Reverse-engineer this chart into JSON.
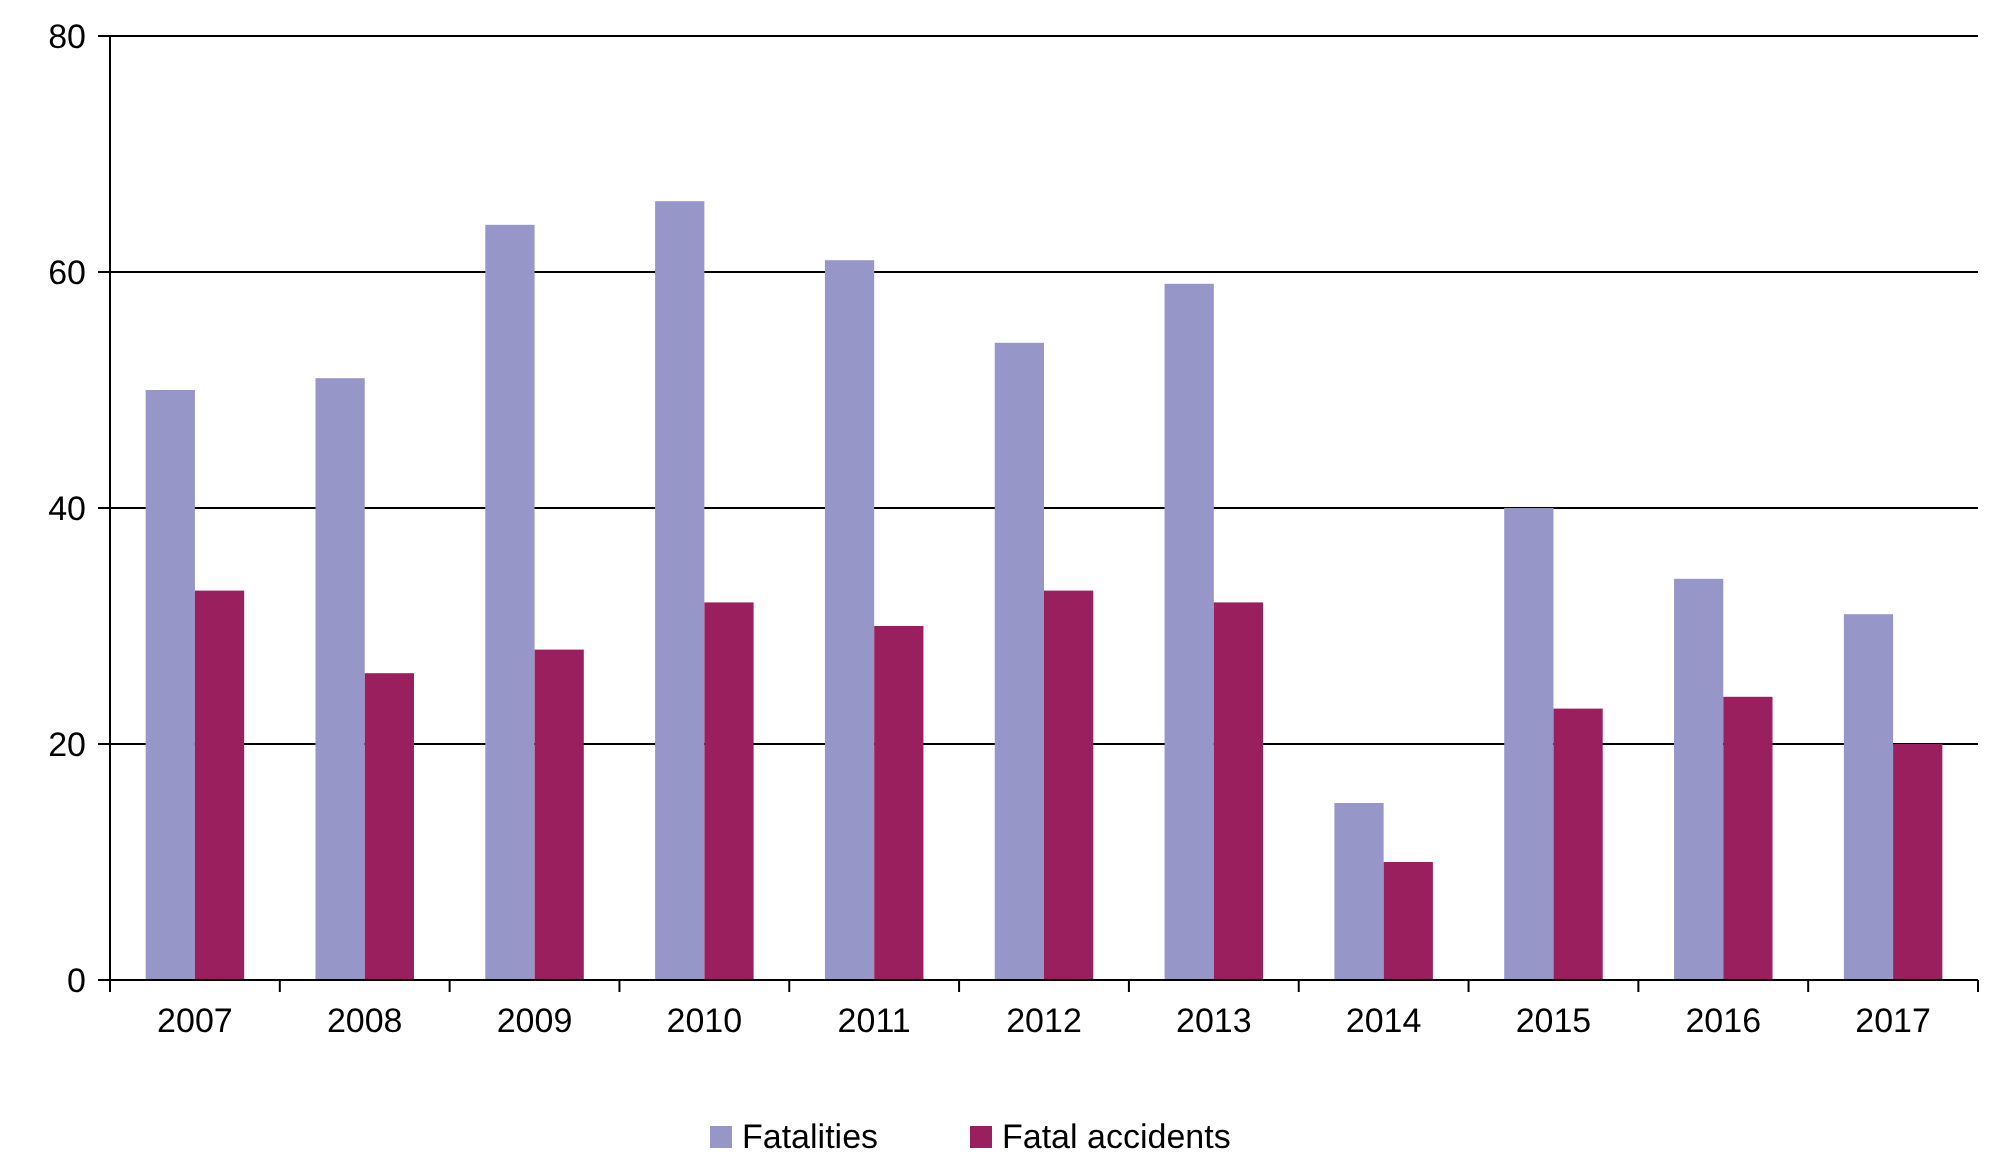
{
  "chart_data": {
    "type": "bar",
    "categories": [
      "2007",
      "2008",
      "2009",
      "2010",
      "2011",
      "2012",
      "2013",
      "2014",
      "2015",
      "2016",
      "2017"
    ],
    "series": [
      {
        "name": "Fatalities",
        "color": "#9696c8",
        "values": [
          50,
          51,
          64,
          66,
          61,
          54,
          59,
          15,
          40,
          34,
          31
        ]
      },
      {
        "name": "Fatal accidents",
        "color": "#9a1f5e",
        "values": [
          33,
          26,
          28,
          32,
          30,
          33,
          32,
          10,
          23,
          24,
          20
        ]
      }
    ],
    "ylim": [
      0,
      80
    ],
    "yticks": [
      0,
      20,
      40,
      60,
      80
    ],
    "grid": "y",
    "legend": "bottom"
  }
}
